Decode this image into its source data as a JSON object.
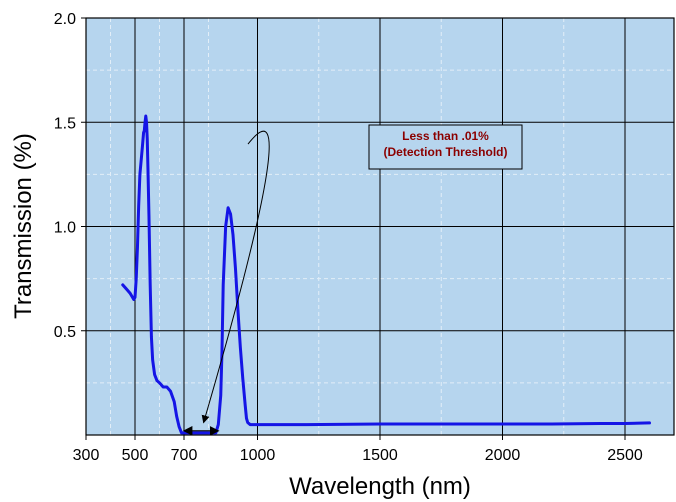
{
  "chart_data": {
    "type": "line",
    "xlabel": "Wavelength (nm)",
    "ylabel": "Transmission (%)",
    "xlim": [
      300,
      2700
    ],
    "ylim": [
      0,
      2.0
    ],
    "x_ticks": [
      300,
      500,
      700,
      1000,
      1500,
      2000,
      2500
    ],
    "x_tick_labels": [
      "300",
      "500",
      "700",
      "1000",
      "1500",
      "2000",
      "2500"
    ],
    "x_gridlines": [
      500,
      700,
      1000,
      1500,
      2000,
      2500
    ],
    "x_minor_gridlines": [
      300,
      400,
      600,
      800,
      1250,
      1750,
      2250
    ],
    "y_ticks": [
      0.5,
      1.0,
      1.5,
      2.0
    ],
    "y_tick_labels": [
      "0.5",
      "1.0",
      "1.5",
      "2.0"
    ],
    "y_gridlines": [
      0.5,
      1.0,
      1.5,
      2.0
    ],
    "y_minor_gridlines": [
      0.25,
      0.75,
      1.25,
      1.75
    ],
    "grid": true,
    "colors": {
      "plot_background": "#b6d5ee",
      "series": "#1515e6",
      "grid_major": "#000000",
      "grid_minor": "#e2eef8",
      "annotation_text": "#8b0000",
      "annotation_box": "#b6d5ee"
    },
    "series": [
      {
        "x": [
          450,
          465,
          480,
          490,
          495,
          500,
          505,
          510,
          515,
          520,
          530,
          535,
          538,
          541,
          544,
          547,
          550,
          553,
          557,
          562,
          567,
          572,
          580,
          590,
          600,
          615,
          630,
          645,
          660,
          670,
          680,
          690,
          700,
          740,
          780,
          820,
          830,
          840,
          850,
          855,
          860,
          870,
          880,
          890,
          900,
          910,
          920,
          930,
          940,
          950,
          955,
          960,
          970,
          1000,
          1200,
          1500,
          1800,
          2000,
          2200,
          2400,
          2500,
          2600
        ],
        "y": [
          0.72,
          0.7,
          0.68,
          0.66,
          0.65,
          0.66,
          0.75,
          0.9,
          1.1,
          1.25,
          1.38,
          1.45,
          1.46,
          1.5,
          1.53,
          1.5,
          1.42,
          1.27,
          1.05,
          0.72,
          0.47,
          0.36,
          0.29,
          0.26,
          0.25,
          0.23,
          0.23,
          0.21,
          0.16,
          0.09,
          0.04,
          0.01,
          0.01,
          0.01,
          0.01,
          0.01,
          0.01,
          0.05,
          0.19,
          0.4,
          0.72,
          1.0,
          1.09,
          1.06,
          0.96,
          0.8,
          0.6,
          0.42,
          0.27,
          0.14,
          0.08,
          0.06,
          0.05,
          0.05,
          0.05,
          0.053,
          0.053,
          0.053,
          0.053,
          0.055,
          0.055,
          0.058
        ]
      }
    ],
    "annotations": [
      {
        "text_lines": [
          "Less than .01%",
          "(Detection Threshold)"
        ],
        "box_x": 1250,
        "box_y": 1.41,
        "curve": {
          "start_x": 1500,
          "start_y": 1.41,
          "control_x": 1200,
          "control_y": 1.75,
          "end_x": 780,
          "end_y": 0.06
        },
        "span_x": [
          700,
          840
        ],
        "span_y": 0.02
      }
    ]
  }
}
